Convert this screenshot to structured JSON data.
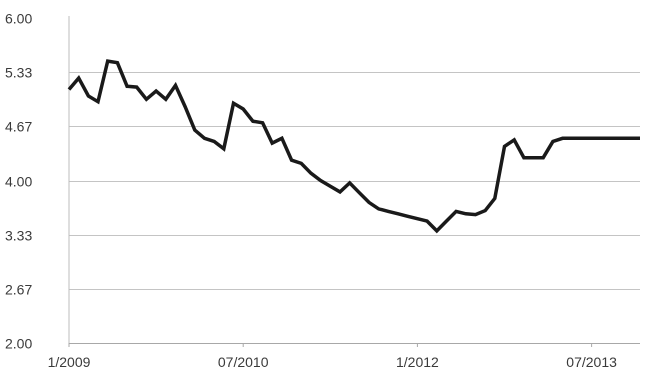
{
  "chart_data": {
    "type": "line",
    "title": "",
    "xlabel": "",
    "ylabel": "",
    "ylim": [
      2.0,
      6.0
    ],
    "xlim": [
      "2009-01",
      "2013-12"
    ],
    "grid": true,
    "legend": "none",
    "y_ticks": [
      {
        "value": 2.0,
        "label": "2.00"
      },
      {
        "value": 2.67,
        "label": "2.67"
      },
      {
        "value": 3.33,
        "label": "3.33"
      },
      {
        "value": 4.0,
        "label": "4.00"
      },
      {
        "value": 4.67,
        "label": "4.67"
      },
      {
        "value": 5.33,
        "label": "5.33"
      },
      {
        "value": 6.0,
        "label": "6.00"
      }
    ],
    "x_ticks": [
      {
        "value": "2009-01",
        "label": "1/2009"
      },
      {
        "value": "2010-07",
        "label": "07/2010"
      },
      {
        "value": "2012-01",
        "label": "1/2012"
      },
      {
        "value": "2013-07",
        "label": "07/2013"
      }
    ],
    "series": [
      {
        "color": "#1a1a1a",
        "x": [
          "2009-01",
          "2009-02",
          "2009-03",
          "2009-04",
          "2009-05",
          "2009-06",
          "2009-07",
          "2009-08",
          "2009-09",
          "2009-10",
          "2009-11",
          "2009-12",
          "2010-01",
          "2010-02",
          "2010-03",
          "2010-04",
          "2010-05",
          "2010-06",
          "2010-07",
          "2010-08",
          "2010-09",
          "2010-10",
          "2010-11",
          "2010-12",
          "2011-01",
          "2011-02",
          "2011-03",
          "2011-04",
          "2011-05",
          "2011-06",
          "2011-07",
          "2011-08",
          "2011-09",
          "2011-10",
          "2011-11",
          "2011-12",
          "2012-01",
          "2012-02",
          "2012-03",
          "2012-04",
          "2012-05",
          "2012-06",
          "2012-07",
          "2012-08",
          "2012-09",
          "2012-10",
          "2012-11",
          "2012-12",
          "2013-01",
          "2013-02",
          "2013-03",
          "2013-04",
          "2013-05",
          "2013-06",
          "2013-07",
          "2013-08",
          "2013-09",
          "2013-10",
          "2013-11",
          "2013-12"
        ],
        "values": [
          5.12,
          5.26,
          5.04,
          4.97,
          5.47,
          5.45,
          5.16,
          5.15,
          5.0,
          5.1,
          5.0,
          5.17,
          4.91,
          4.62,
          4.52,
          4.48,
          4.39,
          4.95,
          4.88,
          4.73,
          4.71,
          4.46,
          4.52,
          4.25,
          4.21,
          4.09,
          4.0,
          3.93,
          3.86,
          3.97,
          3.85,
          3.73,
          3.65,
          3.62,
          3.59,
          3.56,
          3.53,
          3.5,
          3.38,
          3.5,
          3.62,
          3.59,
          3.58,
          3.63,
          3.78,
          4.42,
          4.5,
          4.28,
          4.28,
          4.28,
          4.48,
          4.52,
          4.52,
          4.52,
          4.52,
          4.52,
          4.52,
          4.52,
          4.52,
          4.52
        ]
      }
    ]
  }
}
